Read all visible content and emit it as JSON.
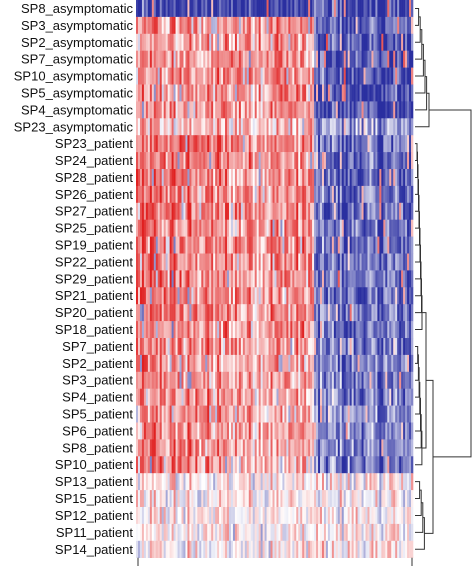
{
  "chart_data": {
    "type": "heatmap",
    "title": "",
    "xlabel": "",
    "ylabel": "",
    "colors": {
      "high": "#e02020",
      "mid": "#ffffff",
      "low": "#2a2fa0"
    },
    "row_labels": [
      "SP8_asymptomatic",
      "SP3_asymptomatic",
      "SP2_asymptomatic",
      "SP7_asymptomatic",
      "SP10_asymptomatic",
      "SP5_asymptomatic",
      "SP4_asymptomatic",
      "SP23_asymptomatic",
      "SP23_patient",
      "SP24_patient",
      "SP28_patient",
      "SP26_patient",
      "SP27_patient",
      "SP25_patient",
      "SP19_patient",
      "SP22_patient",
      "SP29_patient",
      "SP21_patient",
      "SP20_patient",
      "SP18_patient",
      "SP7_patient",
      "SP2_patient",
      "SP3_patient",
      "SP4_patient",
      "SP5_patient",
      "SP6_patient",
      "SP8_patient",
      "SP10_patient",
      "SP13_patient",
      "SP15_patient",
      "SP12_patient",
      "SP11_patient",
      "SP14_patient"
    ],
    "column_blocks": [
      {
        "fraction": 0.195,
        "profiles": [
          0.75,
          0.6,
          -0.9,
          0.45,
          0.3,
          0.6,
          0.5,
          0.05
        ]
      },
      {
        "fraction": 0.075,
        "profiles": [
          0.1,
          -0.2,
          -0.9,
          0.45,
          0.3,
          0.55,
          0.5,
          0.05
        ]
      },
      {
        "fraction": 0.35,
        "profiles": [
          0.15,
          0.1,
          -0.95,
          0.5,
          0.3,
          0.5,
          0.4,
          0.05
        ]
      },
      {
        "fraction": 0.025,
        "profiles": [
          -0.75,
          -0.6,
          -0.95,
          0.4,
          0.3,
          0.45,
          0.3,
          0.1
        ]
      },
      {
        "fraction": 0.355,
        "profiles": [
          0.8,
          0.85,
          -0.9,
          -0.85,
          -0.5,
          -0.7,
          -0.6,
          0.05
        ]
      }
    ],
    "row_groups": [
      2,
      3,
      3,
      3,
      3,
      3,
      3,
      4,
      5,
      5,
      5,
      5,
      5,
      5,
      5,
      5,
      5,
      5,
      5,
      5,
      6,
      6,
      6,
      6,
      6,
      6,
      6,
      6,
      7,
      7,
      7,
      7,
      7
    ]
  }
}
